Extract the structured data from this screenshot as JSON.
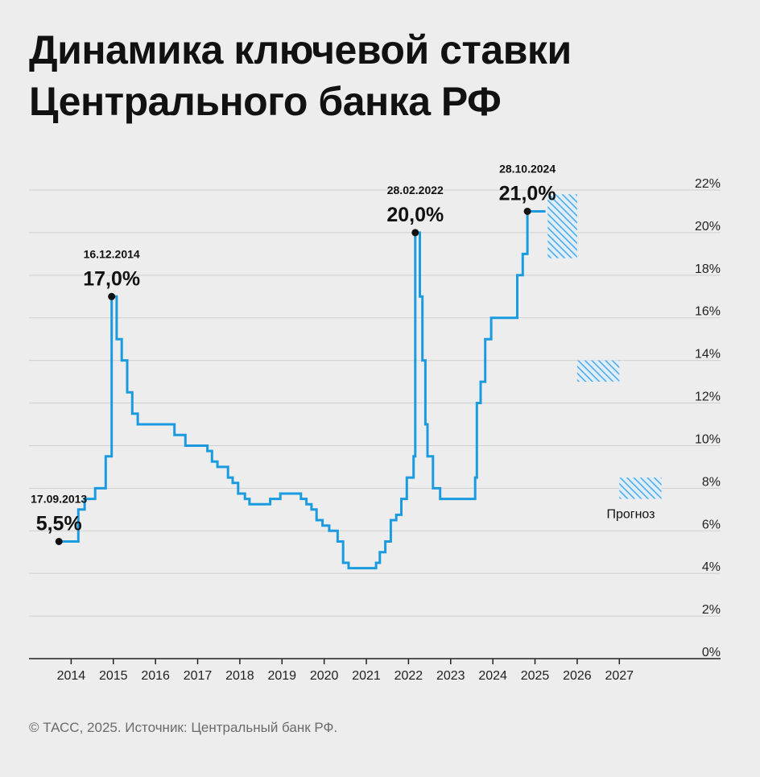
{
  "title": {
    "line1": "Динамика ключевой ставки",
    "line2": "Центрального банка РФ"
  },
  "footer": "© ТАСС, 2025. Источник: Центральный банк РФ.",
  "colors": {
    "line": "#1a9be0",
    "forecast": "#6cb8ee",
    "grid": "#cfcfcf",
    "axis": "#222222"
  },
  "chart_data": {
    "type": "line",
    "ylim": [
      0,
      22
    ],
    "xlim": [
      2013.0,
      2029.4
    ],
    "yticks": [
      0,
      2,
      4,
      6,
      8,
      10,
      12,
      14,
      16,
      18,
      20,
      22
    ],
    "ytick_labels": [
      "0%",
      "2%",
      "4%",
      "6%",
      "8%",
      "10%",
      "12%",
      "14%",
      "16%",
      "18%",
      "20%",
      "22%"
    ],
    "xticks": [
      2014,
      2015,
      2016,
      2017,
      2018,
      2019,
      2020,
      2021,
      2022,
      2023,
      2024,
      2025,
      2026,
      2027
    ],
    "xtick_labels": [
      "2014",
      "2015",
      "2016",
      "2017",
      "2018",
      "2019",
      "2020",
      "2021",
      "2022",
      "2023",
      "2024",
      "2025",
      "2026",
      "2027"
    ],
    "grid": true,
    "y_axis_position": "right",
    "series": [
      {
        "step": true,
        "points": [
          [
            2013.71,
            5.5
          ],
          [
            2014.17,
            7.0
          ],
          [
            2014.32,
            7.5
          ],
          [
            2014.57,
            8.0
          ],
          [
            2014.82,
            9.5
          ],
          [
            2014.96,
            17.0
          ],
          [
            2015.08,
            15.0
          ],
          [
            2015.2,
            14.0
          ],
          [
            2015.33,
            12.5
          ],
          [
            2015.45,
            11.5
          ],
          [
            2015.58,
            11.0
          ],
          [
            2016.45,
            10.5
          ],
          [
            2016.71,
            10.0
          ],
          [
            2017.23,
            9.75
          ],
          [
            2017.34,
            9.25
          ],
          [
            2017.47,
            9.0
          ],
          [
            2017.72,
            8.5
          ],
          [
            2017.83,
            8.25
          ],
          [
            2017.96,
            7.75
          ],
          [
            2018.12,
            7.5
          ],
          [
            2018.23,
            7.25
          ],
          [
            2018.72,
            7.5
          ],
          [
            2018.96,
            7.75
          ],
          [
            2019.45,
            7.5
          ],
          [
            2019.58,
            7.25
          ],
          [
            2019.7,
            7.0
          ],
          [
            2019.82,
            6.5
          ],
          [
            2019.96,
            6.25
          ],
          [
            2020.12,
            6.0
          ],
          [
            2020.32,
            5.5
          ],
          [
            2020.45,
            4.5
          ],
          [
            2020.58,
            4.25
          ],
          [
            2021.23,
            4.5
          ],
          [
            2021.32,
            5.0
          ],
          [
            2021.45,
            5.5
          ],
          [
            2021.58,
            6.5
          ],
          [
            2021.71,
            6.75
          ],
          [
            2021.83,
            7.5
          ],
          [
            2021.96,
            8.5
          ],
          [
            2022.12,
            9.5
          ],
          [
            2022.16,
            20.0
          ],
          [
            2022.27,
            17.0
          ],
          [
            2022.33,
            14.0
          ],
          [
            2022.4,
            11.0
          ],
          [
            2022.45,
            9.5
          ],
          [
            2022.58,
            8.0
          ],
          [
            2022.75,
            7.5
          ],
          [
            2023.58,
            8.5
          ],
          [
            2023.62,
            12.0
          ],
          [
            2023.71,
            13.0
          ],
          [
            2023.82,
            15.0
          ],
          [
            2023.96,
            16.0
          ],
          [
            2024.58,
            18.0
          ],
          [
            2024.71,
            19.0
          ],
          [
            2024.82,
            21.0
          ],
          [
            2025.25,
            21.0
          ]
        ]
      }
    ],
    "forecast": {
      "label": "Прогноз",
      "ranges": [
        {
          "x": [
            2025.3,
            2026.0
          ],
          "y": [
            18.8,
            21.8
          ]
        },
        {
          "x": [
            2026.0,
            2027.0
          ],
          "y": [
            13.0,
            14.0
          ]
        },
        {
          "x": [
            2027.0,
            2028.0
          ],
          "y": [
            7.5,
            8.5
          ]
        }
      ]
    },
    "annotations": [
      {
        "x": 2013.71,
        "y": 5.5,
        "date": "17.09.2013",
        "value": "5,5%"
      },
      {
        "x": 2014.96,
        "y": 17.0,
        "date": "16.12.2014",
        "value": "17,0%"
      },
      {
        "x": 2022.16,
        "y": 20.0,
        "date": "28.02.2022",
        "value": "20,0%"
      },
      {
        "x": 2024.82,
        "y": 21.0,
        "date": "28.10.2024",
        "value": "21,0%"
      }
    ]
  }
}
